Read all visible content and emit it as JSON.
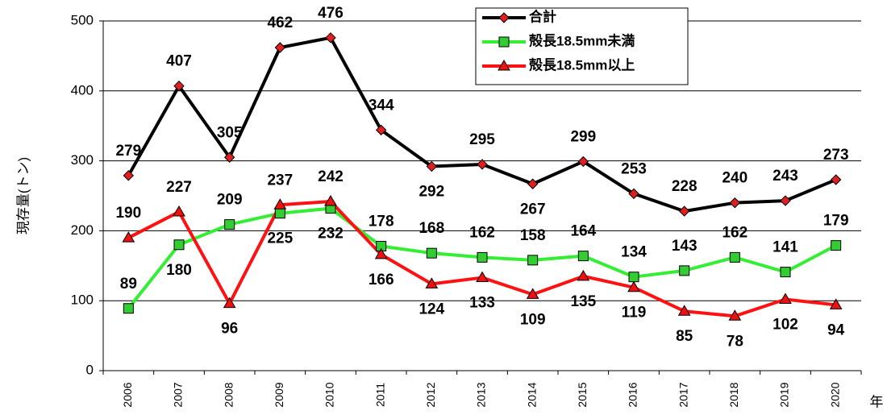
{
  "chart_data": {
    "type": "line",
    "x_label": "年",
    "y_label": "現存量(トン)",
    "categories": [
      "2006",
      "2007",
      "2008",
      "2009",
      "2010",
      "2011",
      "2012",
      "2013",
      "2014",
      "2015",
      "2016",
      "2017",
      "2018",
      "2019",
      "2020"
    ],
    "series": [
      {
        "name": "合計",
        "color": "#000000",
        "marker_color": "#e02020",
        "values": [
          279,
          407,
          305,
          462,
          476,
          344,
          292,
          295,
          267,
          299,
          253,
          228,
          240,
          243,
          273
        ]
      },
      {
        "name": "殻長18.5mm未満",
        "color": "#33ee33",
        "marker_color": "#33cc33",
        "values": [
          89,
          180,
          209,
          225,
          232,
          178,
          168,
          162,
          158,
          164,
          134,
          143,
          162,
          141,
          179
        ]
      },
      {
        "name": "殻長18.5mm以上",
        "color": "#ff1111",
        "marker_color": "#ee1111",
        "values": [
          190,
          227,
          96,
          237,
          242,
          166,
          124,
          133,
          109,
          135,
          119,
          85,
          78,
          102,
          94
        ]
      }
    ],
    "ylim": [
      0,
      500
    ],
    "yticks": [
      0,
      100,
      200,
      300,
      400,
      500
    ],
    "grid": true
  }
}
